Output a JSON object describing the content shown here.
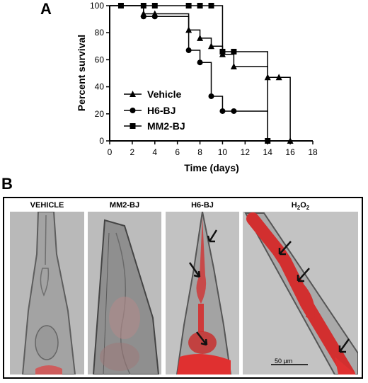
{
  "panel_a": {
    "letter": "A",
    "chart_data": {
      "type": "line",
      "title": "",
      "xlabel": "Time (days)",
      "ylabel": "Percent survival",
      "xlim": [
        0,
        18
      ],
      "ylim": [
        0,
        100
      ],
      "xticks": [
        0,
        2,
        4,
        6,
        8,
        10,
        12,
        14,
        16,
        18
      ],
      "yticks": [
        0,
        20,
        40,
        60,
        80,
        100
      ],
      "step": true,
      "grid": false,
      "legend_position": "bottom-left",
      "series": [
        {
          "name": "Vehicle",
          "marker": "triangle",
          "x": [
            0,
            3,
            4,
            7,
            8,
            9,
            10,
            11,
            14,
            16
          ],
          "y": [
            100,
            94,
            94,
            82,
            76,
            70,
            64,
            55,
            47,
            0
          ],
          "markers_x": [
            3,
            4,
            7,
            8,
            9,
            10,
            11,
            14,
            15,
            16
          ],
          "markers_y": [
            94,
            94,
            82,
            76,
            70,
            64,
            55,
            47,
            47,
            0
          ]
        },
        {
          "name": "H6-BJ",
          "marker": "circle",
          "x": [
            0,
            3,
            7,
            8,
            9,
            10,
            14
          ],
          "y": [
            100,
            92,
            67,
            58,
            33,
            22,
            0
          ],
          "markers_x": [
            3,
            4,
            7,
            8,
            9,
            10,
            11,
            14
          ],
          "markers_y": [
            92,
            92,
            67,
            58,
            33,
            22,
            22,
            0
          ]
        },
        {
          "name": "MM2-BJ",
          "marker": "square",
          "x": [
            0,
            10,
            14
          ],
          "y": [
            100,
            66,
            0
          ],
          "markers_x": [
            1,
            3,
            4,
            7,
            8,
            9,
            10,
            11,
            14
          ],
          "markers_y": [
            100,
            100,
            100,
            100,
            100,
            100,
            66,
            66,
            0
          ]
        }
      ]
    }
  },
  "panel_b": {
    "letter": "B",
    "images": [
      {
        "label": "VEHICLE"
      },
      {
        "label": "MM2-BJ"
      },
      {
        "label": "H6-BJ"
      },
      {
        "label_main": "H",
        "label_sub1": "2",
        "label_mid": "O",
        "label_sub2": "2"
      }
    ],
    "scale_bar_label": "50 μm"
  }
}
